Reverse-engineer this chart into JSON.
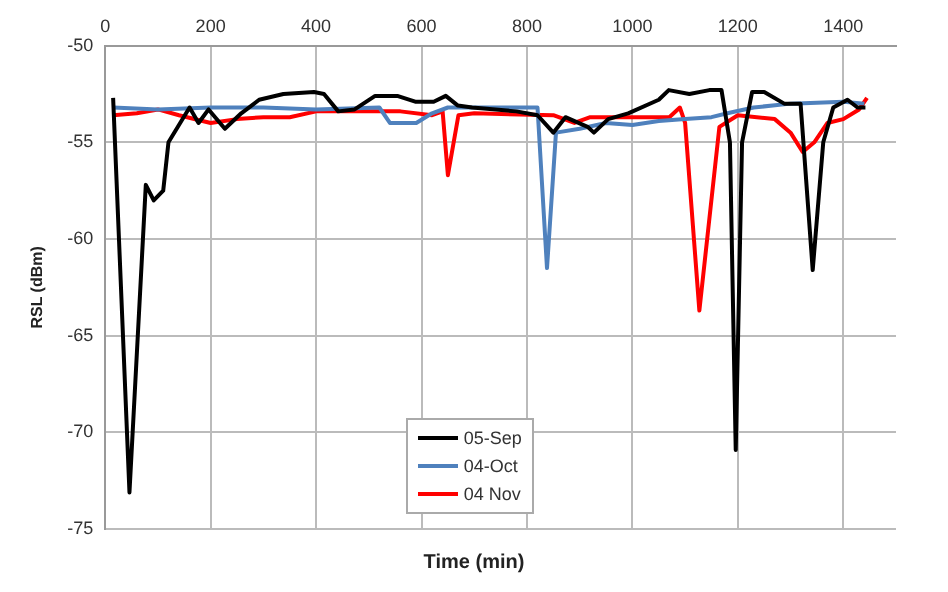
{
  "chart_data": {
    "type": "line",
    "xlabel": "Time (min)",
    "ylabel": "RSL (dBm)",
    "xlim": [
      0,
      1500
    ],
    "xticks": [
      0,
      200,
      400,
      600,
      800,
      1000,
      1200,
      1400
    ],
    "ylim": [
      -75,
      -50
    ],
    "yticks": [
      -75,
      -70,
      -65,
      -60,
      -55,
      -50
    ],
    "grid": true,
    "legend": "bottom",
    "marker": "none",
    "line_style": "solid",
    "series": [
      {
        "name": "05-Sep",
        "color": "#000000",
        "x": [
          15,
          46,
          77,
          92,
          110,
          120,
          160,
          177,
          196,
          227,
          258,
          292,
          338,
          396,
          415,
          442,
          473,
          512,
          554,
          588,
          623,
          646,
          669,
          696,
          780,
          820,
          850,
          873,
          915,
          927,
          954,
          992,
          1050,
          1069,
          1108,
          1146,
          1169,
          1185,
          1196,
          1208,
          1227,
          1250,
          1288,
          1319,
          1342,
          1362,
          1381,
          1408,
          1427,
          1442
        ],
        "values": [
          -52.7,
          -73.1,
          -57.2,
          -58,
          -57.5,
          -55,
          -53.2,
          -54,
          -53.3,
          -54.3,
          -53.5,
          -52.8,
          -52.5,
          -52.4,
          -52.5,
          -53.4,
          -53.3,
          -52.6,
          -52.6,
          -52.9,
          -52.9,
          -52.6,
          -53.1,
          -53.2,
          -53.4,
          -53.6,
          -54.5,
          -53.7,
          -54.2,
          -54.5,
          -53.8,
          -53.5,
          -52.8,
          -52.3,
          -52.5,
          -52.3,
          -52.3,
          -55,
          -70.9,
          -55,
          -52.4,
          -52.4,
          -53,
          -53,
          -61.6,
          -55,
          -53.2,
          -52.8,
          -53.2,
          -53.2
        ]
      },
      {
        "name": "04-Oct",
        "color": "#4f81bd",
        "x": [
          15,
          100,
          200,
          300,
          400,
          520,
          540,
          590,
          620,
          650,
          820,
          838,
          855,
          900,
          950,
          1000,
          1050,
          1100,
          1150,
          1180,
          1230,
          1300,
          1400,
          1440
        ],
        "values": [
          -53.2,
          -53.3,
          -53.2,
          -53.2,
          -53.3,
          -53.2,
          -54,
          -54,
          -53.5,
          -53.2,
          -53.2,
          -61.5,
          -54.5,
          -54.3,
          -54,
          -54.1,
          -53.9,
          -53.8,
          -53.7,
          -53.5,
          -53.2,
          -53,
          -52.9,
          -53
        ]
      },
      {
        "name": "04 Nov",
        "color": "#ff0000",
        "x": [
          15,
          60,
          100,
          140,
          200,
          250,
          300,
          350,
          400,
          500,
          560,
          620,
          640,
          650,
          670,
          700,
          850,
          890,
          920,
          1070,
          1090,
          1100,
          1127,
          1165,
          1200,
          1270,
          1300,
          1323,
          1345,
          1370,
          1400,
          1430,
          1445
        ],
        "values": [
          -53.6,
          -53.5,
          -53.3,
          -53.6,
          -54,
          -53.8,
          -53.7,
          -53.7,
          -53.4,
          -53.4,
          -53.4,
          -53.6,
          -53.4,
          -56.7,
          -53.6,
          -53.5,
          -53.6,
          -54,
          -53.7,
          -53.7,
          -53.2,
          -54,
          -63.7,
          -54.2,
          -53.6,
          -53.8,
          -54.5,
          -55.5,
          -55,
          -54,
          -53.8,
          -53.3,
          -52.7
        ]
      }
    ]
  }
}
